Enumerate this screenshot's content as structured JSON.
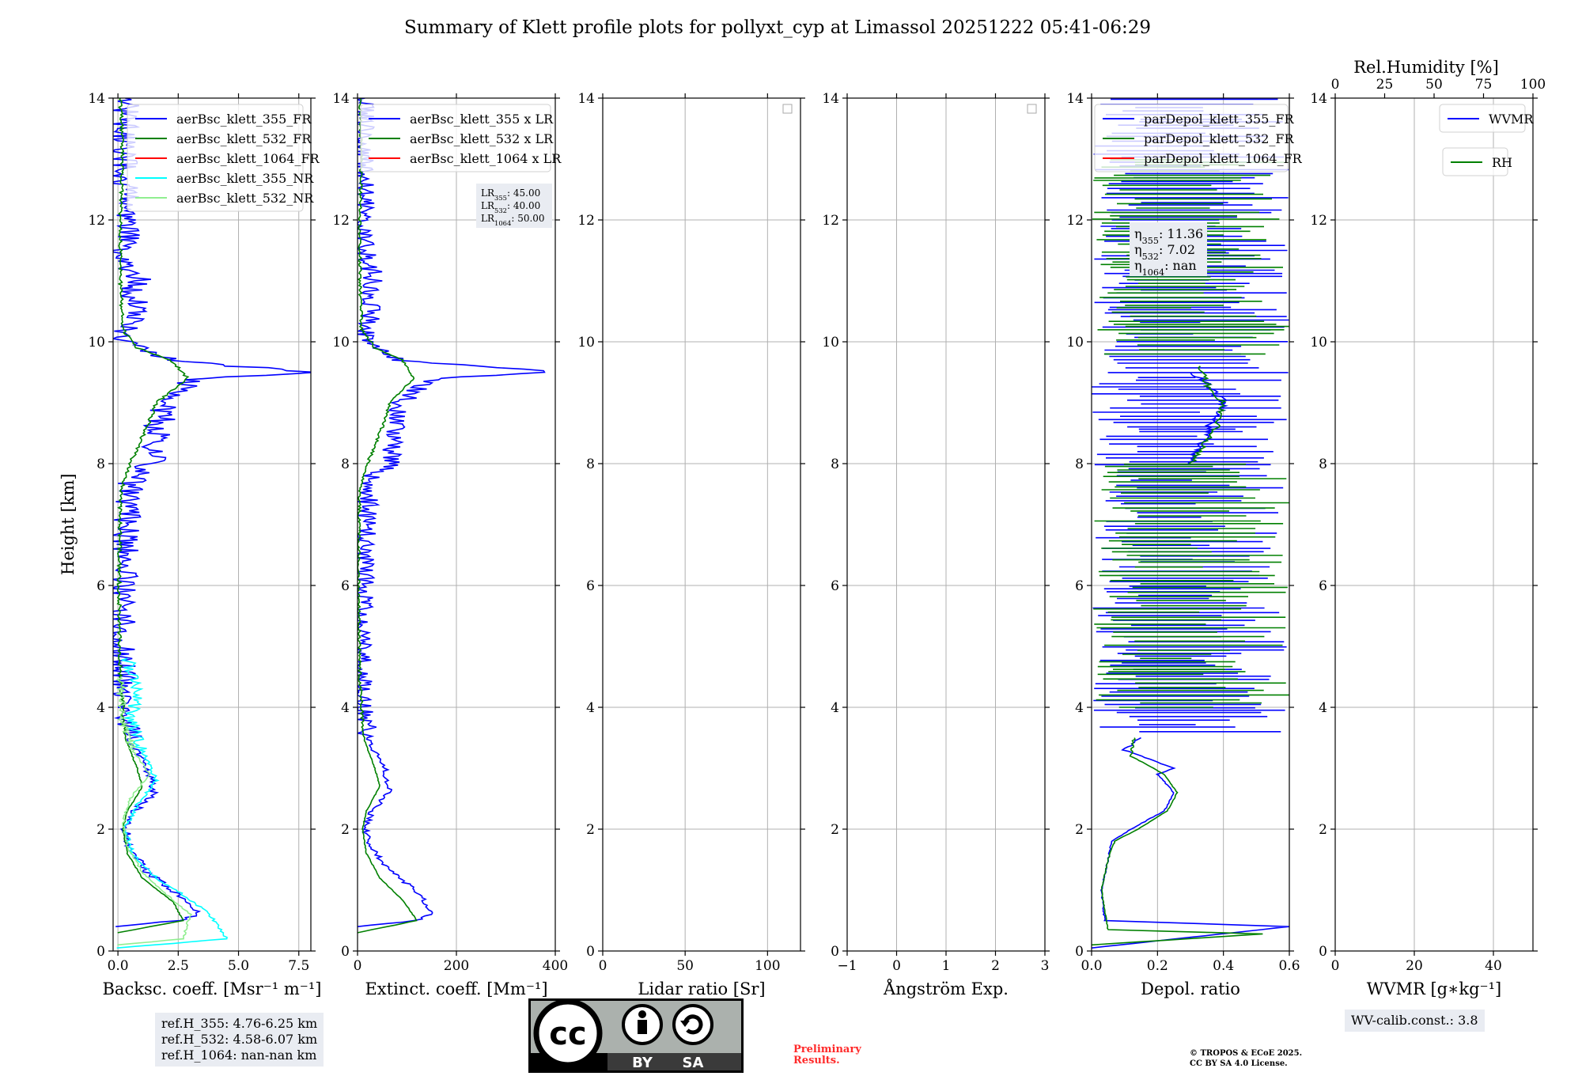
{
  "figure": {
    "title": "Summary of Klett profile plots for pollyxt_cyp at Limassol 20251222 05:41-06:29",
    "ylabel": "Height [km]",
    "refH": [
      "ref.H_355: 4.76-6.25 km",
      "ref.H_532: 4.58-6.07 km",
      "ref.H_1064: nan-nan km"
    ],
    "wv_calib": "WV-calib.const.: 3.8",
    "preliminary": [
      "Preliminary",
      "Results."
    ],
    "copyright": [
      "© TROPOS & ECoE 2025.",
      "CC BY SA 4.0 License."
    ],
    "license_badge": {
      "by": "BY",
      "sa": "SA",
      "cc": "cc"
    },
    "colors": {
      "blue": "#0000ff",
      "green": "#008000",
      "red": "#ff0000",
      "cyan": "#00ffff",
      "lightgreen": "#90ee90",
      "grid": "#b0b0b0",
      "preliminary": "#ff0000"
    }
  },
  "chart_data": [
    {
      "type": "line",
      "id": "bsc",
      "xlabel": "Backsc. coeff. [Msr⁻¹ m⁻¹]",
      "ylabel": "Height [km]",
      "xlim": [
        -0.2,
        8.0
      ],
      "ylim": [
        0,
        14
      ],
      "xticks": [
        0.0,
        2.5,
        5.0,
        7.5
      ],
      "xticklabels": [
        "0.0",
        "2.5",
        "5.0",
        "7.5"
      ],
      "yticks": [
        0,
        2,
        4,
        6,
        8,
        10,
        12,
        14
      ],
      "legend": [
        "aerBsc_klett_355_FR",
        "aerBsc_klett_532_FR",
        "aerBsc_klett_1064_FR",
        "aerBsc_klett_355_NR",
        "aerBsc_klett_532_NR"
      ],
      "legend_colors": [
        "#0000ff",
        "#008000",
        "#ff0000",
        "#00ffff",
        "#90ee90"
      ],
      "series": [
        {
          "name": "aerBsc_klett_355_FR",
          "color": "#0000ff",
          "noise": 1.2,
          "seed": 11,
          "points": [
            [
              0.0,
              0.4
            ],
            [
              2.5,
              0.5
            ],
            [
              3.4,
              0.6
            ],
            [
              2.6,
              0.9
            ],
            [
              1.2,
              1.3
            ],
            [
              0.5,
              1.7
            ],
            [
              0.3,
              2.0
            ],
            [
              0.7,
              2.3
            ],
            [
              1.5,
              2.6
            ],
            [
              1.2,
              3.0
            ],
            [
              0.5,
              3.5
            ],
            [
              0.2,
              4.2
            ],
            [
              0.1,
              5.0
            ],
            [
              0.2,
              6.0
            ],
            [
              0.3,
              7.0
            ],
            [
              0.6,
              7.8
            ],
            [
              1.5,
              8.0
            ],
            [
              1.6,
              8.5
            ],
            [
              2.0,
              9.0
            ],
            [
              3.2,
              9.4
            ],
            [
              8.0,
              9.5
            ],
            [
              2.0,
              9.7
            ],
            [
              0.3,
              10.0
            ],
            [
              0.6,
              10.5
            ],
            [
              0.8,
              11.0
            ],
            [
              0.3,
              11.5
            ],
            [
              0.4,
              12.0
            ],
            [
              0.2,
              13.0
            ],
            [
              0.3,
              14.0
            ]
          ]
        },
        {
          "name": "aerBsc_klett_532_FR",
          "color": "#008000",
          "noise": 0.15,
          "seed": 22,
          "points": [
            [
              0.0,
              0.3
            ],
            [
              2.7,
              0.5
            ],
            [
              2.3,
              0.8
            ],
            [
              1.0,
              1.2
            ],
            [
              0.4,
              1.6
            ],
            [
              0.2,
              2.0
            ],
            [
              0.4,
              2.3
            ],
            [
              1.0,
              2.7
            ],
            [
              0.8,
              3.0
            ],
            [
              0.3,
              3.5
            ],
            [
              0.1,
              4.5
            ],
            [
              0.05,
              6.0
            ],
            [
              0.1,
              7.5
            ],
            [
              0.5,
              8.0
            ],
            [
              1.2,
              8.6
            ],
            [
              1.6,
              9.0
            ],
            [
              2.9,
              9.4
            ],
            [
              2.2,
              9.7
            ],
            [
              0.8,
              9.9
            ],
            [
              0.2,
              10.2
            ],
            [
              0.1,
              11.0
            ],
            [
              0.1,
              12.0
            ],
            [
              0.2,
              13.0
            ],
            [
              0.1,
              14.0
            ]
          ]
        },
        {
          "name": "aerBsc_klett_355_NR",
          "color": "#00ffff",
          "noise": 0.6,
          "seed": 33,
          "points": [
            [
              0.0,
              0.05
            ],
            [
              4.5,
              0.2
            ],
            [
              3.8,
              0.6
            ],
            [
              2.8,
              0.9
            ],
            [
              1.6,
              1.2
            ],
            [
              0.6,
              1.6
            ],
            [
              0.3,
              2.0
            ],
            [
              0.8,
              2.4
            ],
            [
              1.6,
              2.8
            ],
            [
              1.0,
              3.3
            ],
            [
              0.5,
              3.8
            ],
            [
              0.9,
              4.2
            ],
            [
              0.4,
              4.8
            ]
          ]
        },
        {
          "name": "aerBsc_klett_532_NR",
          "color": "#90ee90",
          "noise": 0.35,
          "seed": 44,
          "points": [
            [
              0.0,
              0.1
            ],
            [
              2.7,
              0.2
            ],
            [
              3.0,
              0.6
            ],
            [
              2.1,
              0.9
            ],
            [
              1.0,
              1.3
            ],
            [
              0.4,
              1.7
            ],
            [
              0.2,
              2.1
            ],
            [
              0.5,
              2.5
            ],
            [
              1.3,
              2.9
            ],
            [
              0.6,
              3.3
            ],
            [
              0.2,
              3.8
            ],
            [
              0.1,
              4.5
            ]
          ]
        }
      ]
    },
    {
      "type": "line",
      "id": "ext",
      "xlabel": "Extinct. coeff. [Mm⁻¹]",
      "ylabel": "",
      "xlim": [
        0,
        400
      ],
      "ylim": [
        0,
        14
      ],
      "xticks": [
        0,
        200,
        400
      ],
      "xticklabels": [
        "0",
        "200",
        "400"
      ],
      "yticks": [
        0,
        2,
        4,
        6,
        8,
        10,
        12,
        14
      ],
      "legend": [
        "aerBsc_klett_355 x LR",
        "aerBsc_klett_532 x LR",
        "aerBsc_klett_1064 x LR"
      ],
      "legend_colors": [
        "#0000ff",
        "#008000",
        "#ff0000"
      ],
      "lr_box": {
        "lines": [
          {
            "sub": "355",
            "val": ": 45.00"
          },
          {
            "sub": "532",
            "val": ": 40.00"
          },
          {
            "sub": "1064",
            "val": ": 50.00"
          }
        ],
        "prefix": "LR"
      },
      "series": [
        {
          "name": "aerBsc_klett_355 x LR",
          "color": "#0000ff",
          "noise": 45,
          "seed": 55,
          "points": [
            [
              0,
              0.4
            ],
            [
              120,
              0.5
            ],
            [
              150,
              0.6
            ],
            [
              130,
              0.9
            ],
            [
              70,
              1.3
            ],
            [
              25,
              1.7
            ],
            [
              15,
              2.0
            ],
            [
              30,
              2.3
            ],
            [
              65,
              2.6
            ],
            [
              55,
              3.0
            ],
            [
              20,
              3.5
            ],
            [
              8,
              4.2
            ],
            [
              5,
              5.0
            ],
            [
              10,
              6.0
            ],
            [
              15,
              7.0
            ],
            [
              30,
              7.8
            ],
            [
              70,
              8.0
            ],
            [
              75,
              8.5
            ],
            [
              90,
              9.0
            ],
            [
              150,
              9.4
            ],
            [
              400,
              9.5
            ],
            [
              90,
              9.7
            ],
            [
              15,
              10.0
            ],
            [
              25,
              10.5
            ],
            [
              35,
              11.0
            ],
            [
              15,
              11.5
            ],
            [
              20,
              12.0
            ],
            [
              10,
              13.0
            ],
            [
              15,
              14.0
            ]
          ]
        },
        {
          "name": "aerBsc_klett_532 x LR",
          "color": "#008000",
          "noise": 6,
          "seed": 66,
          "points": [
            [
              0,
              0.3
            ],
            [
              120,
              0.5
            ],
            [
              95,
              0.8
            ],
            [
              45,
              1.2
            ],
            [
              18,
              1.6
            ],
            [
              10,
              2.0
            ],
            [
              18,
              2.3
            ],
            [
              45,
              2.7
            ],
            [
              35,
              3.0
            ],
            [
              12,
              3.5
            ],
            [
              5,
              4.5
            ],
            [
              2,
              6.0
            ],
            [
              4,
              7.5
            ],
            [
              20,
              8.0
            ],
            [
              50,
              8.6
            ],
            [
              65,
              9.0
            ],
            [
              115,
              9.4
            ],
            [
              90,
              9.7
            ],
            [
              35,
              9.9
            ],
            [
              8,
              10.2
            ],
            [
              5,
              11.0
            ],
            [
              5,
              12.0
            ],
            [
              8,
              13.0
            ],
            [
              5,
              14.0
            ]
          ]
        }
      ]
    },
    {
      "type": "line",
      "id": "lr",
      "xlabel": "Lidar ratio [Sr]",
      "ylabel": "",
      "xlim": [
        0,
        120
      ],
      "ylim": [
        0,
        14
      ],
      "xticks": [
        0,
        50,
        100
      ],
      "xticklabels": [
        "0",
        "50",
        "100"
      ],
      "yticks": [
        0,
        2,
        4,
        6,
        8,
        10,
        12,
        14
      ],
      "legend": [],
      "legend_colors": [],
      "series": []
    },
    {
      "type": "line",
      "id": "ang",
      "xlabel": "Ångström Exp.",
      "ylabel": "",
      "xlim": [
        -1,
        3
      ],
      "ylim": [
        0,
        14
      ],
      "xticks": [
        -1,
        0,
        1,
        2,
        3
      ],
      "xticklabels": [
        "−1",
        "0",
        "1",
        "2",
        "3"
      ],
      "yticks": [
        0,
        2,
        4,
        6,
        8,
        10,
        12,
        14
      ],
      "legend": [],
      "legend_colors": [],
      "series": []
    },
    {
      "type": "line",
      "id": "depol",
      "xlabel": "Depol. ratio",
      "ylabel": "",
      "xlim": [
        0,
        0.6
      ],
      "ylim": [
        0,
        14
      ],
      "xticks": [
        0.0,
        0.2,
        0.4,
        0.6
      ],
      "xticklabels": [
        "0.0",
        "0.2",
        "0.4",
        "0.6"
      ],
      "yticks": [
        0,
        2,
        4,
        6,
        8,
        10,
        12,
        14
      ],
      "legend": [
        "parDepol_klett_355_FR",
        "parDepol_klett_532_FR",
        "parDepol_klett_1064_FR"
      ],
      "legend_colors": [
        "#0000ff",
        "#008000",
        "#ff0000"
      ],
      "eta_box": {
        "prefix": "η",
        "lines": [
          {
            "sub": "355",
            "val": ": 11.36"
          },
          {
            "sub": "532",
            "val": ": 7.02"
          },
          {
            "sub": "1064",
            "val": ": nan"
          }
        ]
      },
      "series": [
        {
          "name": "parDepol_klett_355_FR",
          "color": "#0000ff",
          "noise": 0.015,
          "seed": 77,
          "spiky": [
            3.6,
            14.0,
            0.6,
            0.0
          ],
          "points": [
            [
              0.0,
              0.05
            ],
            [
              0.6,
              0.4
            ],
            [
              0.04,
              0.5
            ],
            [
              0.03,
              1.0
            ],
            [
              0.05,
              1.5
            ],
            [
              0.06,
              1.8
            ],
            [
              0.12,
              2.0
            ],
            [
              0.22,
              2.3
            ],
            [
              0.25,
              2.6
            ],
            [
              0.2,
              2.9
            ],
            [
              0.25,
              3.0
            ],
            [
              0.1,
              3.3
            ],
            [
              0.15,
              3.5
            ]
          ]
        },
        {
          "name": "parDepol_klett_532_FR",
          "color": "#008000",
          "noise": 0.01,
          "seed": 88,
          "spiky": [
            4.0,
            8.0,
            0.6,
            0.0
          ],
          "points": [
            [
              0.0,
              0.1
            ],
            [
              0.52,
              0.28
            ],
            [
              0.05,
              0.35
            ],
            [
              0.03,
              1.0
            ],
            [
              0.05,
              1.5
            ],
            [
              0.07,
              1.8
            ],
            [
              0.14,
              2.0
            ],
            [
              0.23,
              2.3
            ],
            [
              0.26,
              2.6
            ],
            [
              0.22,
              2.9
            ],
            [
              0.12,
              3.2
            ],
            [
              0.13,
              3.5
            ]
          ]
        },
        {
          "name": "parDepol_klett_355_FR_mid",
          "color": "#0000ff",
          "noise": 0.03,
          "seed": 99,
          "points": [
            [
              0.3,
              8.0
            ],
            [
              0.35,
              8.5
            ],
            [
              0.4,
              9.0
            ],
            [
              0.35,
              9.3
            ],
            [
              0.3,
              9.5
            ]
          ]
        },
        {
          "name": "parDepol_klett_532_FR_mid",
          "color": "#008000",
          "noise": 0.02,
          "seed": 101,
          "spiky": [
            9.8,
            13.0,
            0.6,
            0.0
          ],
          "points": [
            [
              0.3,
              8.0
            ],
            [
              0.38,
              8.6
            ],
            [
              0.4,
              9.0
            ],
            [
              0.35,
              9.3
            ],
            [
              0.33,
              9.6
            ]
          ]
        }
      ]
    },
    {
      "type": "line",
      "id": "wv",
      "xlabel": "WVMR [g∗kg⁻¹]",
      "ylabel": "",
      "xlim": [
        0,
        50
      ],
      "ylim": [
        0,
        14
      ],
      "xticks": [
        0,
        20,
        40
      ],
      "xticklabels": [
        "0",
        "20",
        "40"
      ],
      "yticks": [
        0,
        2,
        4,
        6,
        8,
        10,
        12,
        14
      ],
      "top_axis": {
        "label": "Rel.Humidity [%]",
        "lim": [
          0,
          100
        ],
        "ticks": [
          0,
          25,
          50,
          75,
          100
        ],
        "ticklabels": [
          "0",
          "25",
          "50",
          "75",
          "100"
        ]
      },
      "legend": [
        "WVMR"
      ],
      "legend_colors": [
        "#0000ff"
      ],
      "legend2": [
        "RH"
      ],
      "legend2_colors": [
        "#008000"
      ],
      "series": []
    }
  ]
}
